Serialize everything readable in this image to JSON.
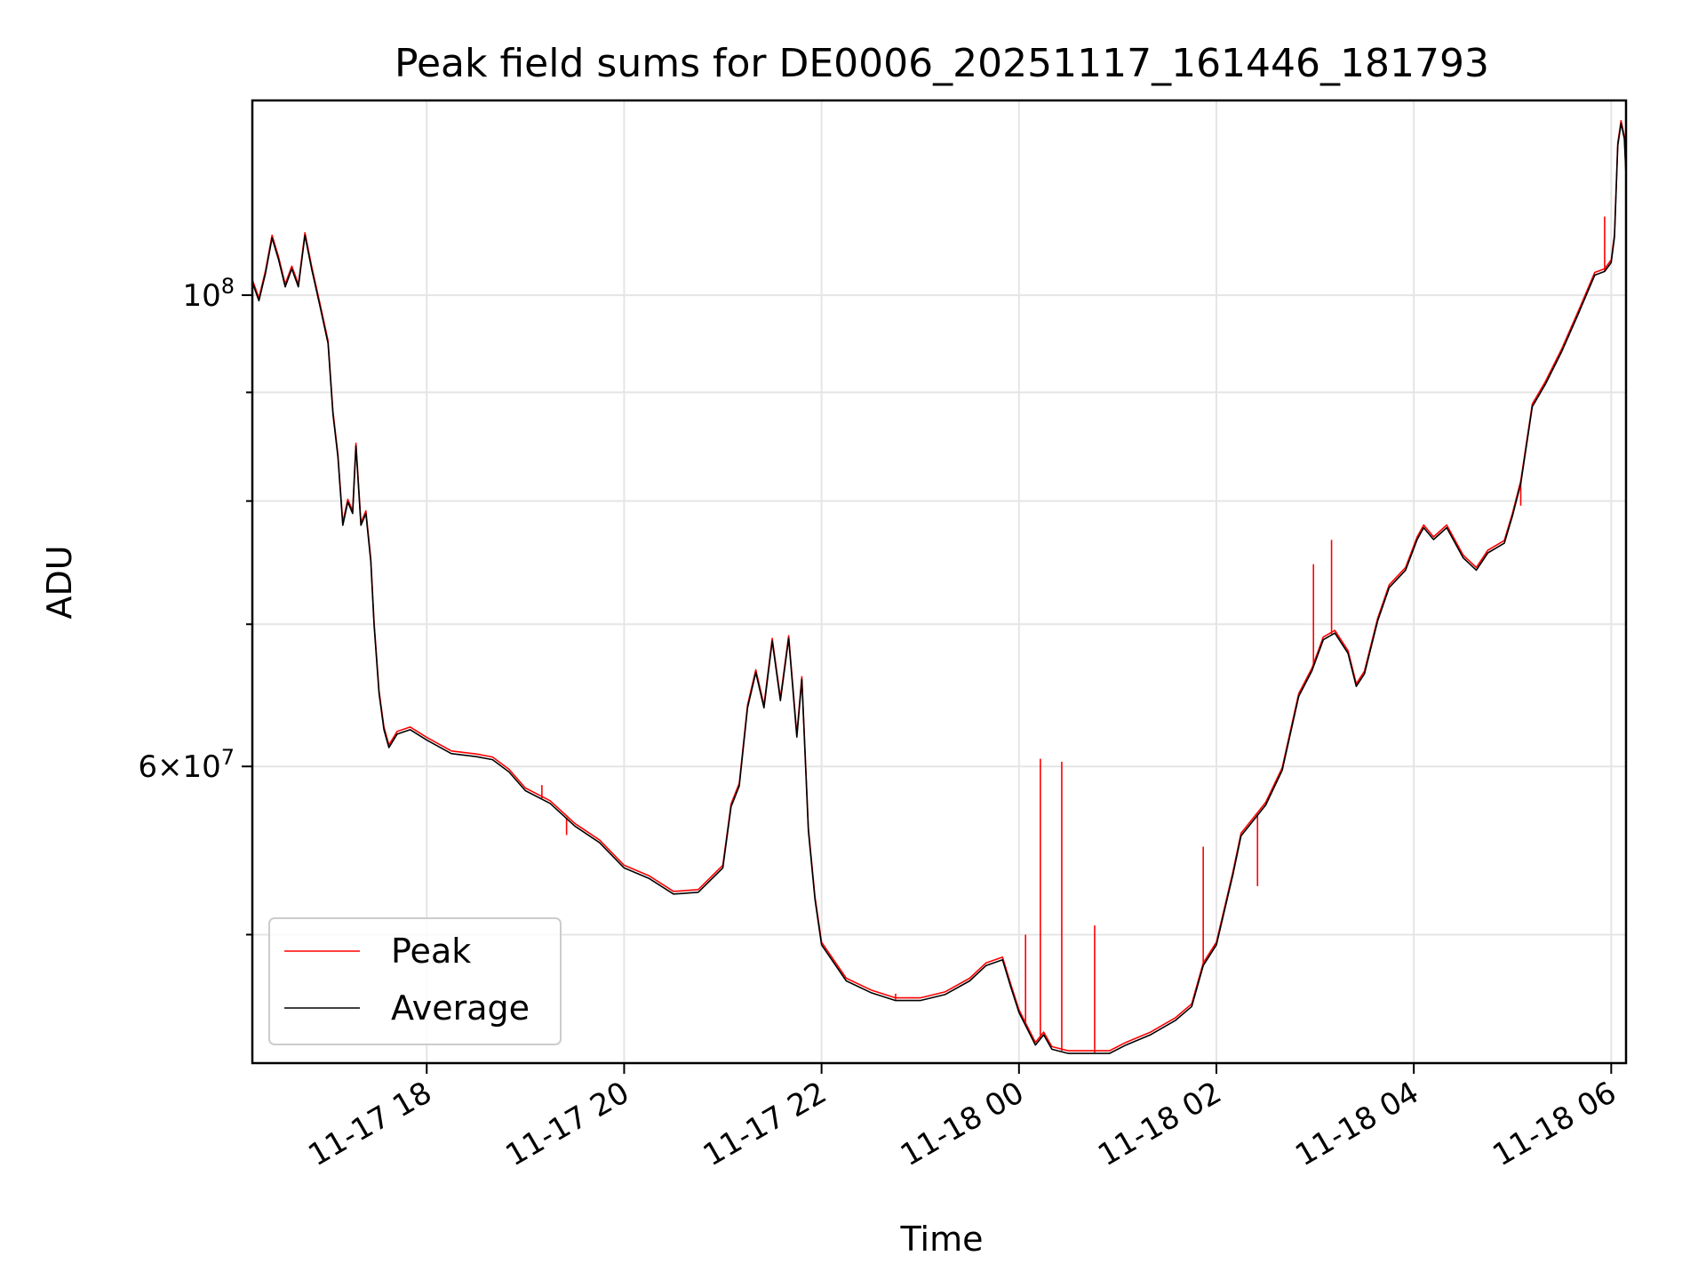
{
  "chart_data": {
    "type": "line",
    "title": "Peak field sums for DE0006_20251117_161446_181793",
    "xlabel": "Time",
    "ylabel": "ADU",
    "y_scale": "log",
    "ylim": [
      43500000,
      123500000
    ],
    "xlim": [
      "2025-11-17 16:14",
      "2025-11-18 06:09"
    ],
    "grid": true,
    "legend_position": "lower-left",
    "x_ticks": [
      {
        "t": "2025-11-17 18:00",
        "label": "11-17 18"
      },
      {
        "t": "2025-11-17 20:00",
        "label": "11-17 20"
      },
      {
        "t": "2025-11-17 22:00",
        "label": "11-17 22"
      },
      {
        "t": "2025-11-18 00:00",
        "label": "11-18 00"
      },
      {
        "t": "2025-11-18 02:00",
        "label": "11-18 02"
      },
      {
        "t": "2025-11-18 04:00",
        "label": "11-18 04"
      },
      {
        "t": "2025-11-18 06:00",
        "label": "11-18 06"
      }
    ],
    "y_major_ticks": [
      {
        "value": 100000000,
        "base": "10",
        "exp": "8"
      },
      {
        "value": 60000000,
        "mantissa": "6",
        "base": "10",
        "exp": "7"
      }
    ],
    "y_minor_ticks": [
      50000000,
      70000000,
      80000000,
      90000000
    ],
    "series": [
      {
        "name": "Peak",
        "color": "#ff0000",
        "points": [
          [
            "2025-11-17 16:14",
            101500000
          ],
          [
            "2025-11-17 16:18",
            99500000
          ],
          [
            "2025-11-17 16:22",
            102500000
          ],
          [
            "2025-11-17 16:26",
            106500000
          ],
          [
            "2025-11-17 16:30",
            104000000
          ],
          [
            "2025-11-17 16:34",
            101000000
          ],
          [
            "2025-11-17 16:38",
            103000000
          ],
          [
            "2025-11-17 16:42",
            101000000
          ],
          [
            "2025-11-17 16:46",
            106800000
          ],
          [
            "2025-11-17 16:50",
            103000000
          ],
          [
            "2025-11-17 16:55",
            99000000
          ],
          [
            "2025-11-17 17:00",
            95000000
          ],
          [
            "2025-11-17 17:03",
            88000000
          ],
          [
            "2025-11-17 17:06",
            84000000
          ],
          [
            "2025-11-17 17:09",
            78000000
          ],
          [
            "2025-11-17 17:12",
            80000000
          ],
          [
            "2025-11-17 17:15",
            79000000
          ],
          [
            "2025-11-17 17:17",
            85000000
          ],
          [
            "2025-11-17 17:20",
            78000000
          ],
          [
            "2025-11-17 17:23",
            79000000
          ],
          [
            "2025-11-17 17:26",
            75000000
          ],
          [
            "2025-11-17 17:28",
            70000000
          ],
          [
            "2025-11-17 17:31",
            65000000
          ],
          [
            "2025-11-17 17:34",
            62500000
          ],
          [
            "2025-11-17 17:37",
            61300000
          ],
          [
            "2025-11-17 17:42",
            62200000
          ],
          [
            "2025-11-17 17:50",
            62500000
          ],
          [
            "2025-11-17 18:00",
            61800000
          ],
          [
            "2025-11-17 18:15",
            60900000
          ],
          [
            "2025-11-17 18:30",
            60700000
          ],
          [
            "2025-11-17 18:40",
            60500000
          ],
          [
            "2025-11-17 18:50",
            59700000
          ],
          [
            "2025-11-17 19:00",
            58500000
          ],
          [
            "2025-11-17 19:15",
            57700000
          ],
          [
            "2025-11-17 19:30",
            56300000
          ],
          [
            "2025-11-17 19:45",
            55300000
          ],
          [
            "2025-11-17 20:00",
            53800000
          ],
          [
            "2025-11-17 20:15",
            53200000
          ],
          [
            "2025-11-17 20:30",
            52300000
          ],
          [
            "2025-11-17 20:45",
            52400000
          ],
          [
            "2025-11-17 21:00",
            53800000
          ],
          [
            "2025-11-17 21:05",
            57500000
          ],
          [
            "2025-11-17 21:10",
            58800000
          ],
          [
            "2025-11-17 21:15",
            64000000
          ],
          [
            "2025-11-17 21:20",
            66500000
          ],
          [
            "2025-11-17 21:25",
            64000000
          ],
          [
            "2025-11-17 21:30",
            68800000
          ],
          [
            "2025-11-17 21:35",
            64500000
          ],
          [
            "2025-11-17 21:40",
            69000000
          ],
          [
            "2025-11-17 21:45",
            62000000
          ],
          [
            "2025-11-17 21:48",
            66000000
          ],
          [
            "2025-11-17 21:52",
            56000000
          ],
          [
            "2025-11-17 21:56",
            52000000
          ],
          [
            "2025-11-17 22:00",
            49500000
          ],
          [
            "2025-11-17 22:15",
            47600000
          ],
          [
            "2025-11-17 22:30",
            47000000
          ],
          [
            "2025-11-17 22:45",
            46600000
          ],
          [
            "2025-11-17 23:00",
            46600000
          ],
          [
            "2025-11-17 23:15",
            46900000
          ],
          [
            "2025-11-17 23:30",
            47600000
          ],
          [
            "2025-11-17 23:40",
            48400000
          ],
          [
            "2025-11-17 23:50",
            48700000
          ],
          [
            "2025-11-17 23:55",
            47300000
          ],
          [
            "2025-11-18 00:00",
            46000000
          ],
          [
            "2025-11-18 00:10",
            44400000
          ],
          [
            "2025-11-18 00:15",
            44900000
          ],
          [
            "2025-11-18 00:20",
            44200000
          ],
          [
            "2025-11-18 00:30",
            44000000
          ],
          [
            "2025-11-18 00:45",
            44000000
          ],
          [
            "2025-11-18 00:55",
            44000000
          ],
          [
            "2025-11-18 01:05",
            44400000
          ],
          [
            "2025-11-18 01:20",
            44900000
          ],
          [
            "2025-11-18 01:35",
            45600000
          ],
          [
            "2025-11-18 01:45",
            46300000
          ],
          [
            "2025-11-18 01:52",
            48400000
          ],
          [
            "2025-11-18 02:00",
            49500000
          ],
          [
            "2025-11-18 02:10",
            53400000
          ],
          [
            "2025-11-18 02:15",
            55700000
          ],
          [
            "2025-11-18 02:30",
            57600000
          ],
          [
            "2025-11-18 02:40",
            59800000
          ],
          [
            "2025-11-18 02:50",
            64800000
          ],
          [
            "2025-11-18 02:58",
            66600000
          ],
          [
            "2025-11-18 03:05",
            68900000
          ],
          [
            "2025-11-18 03:12",
            69400000
          ],
          [
            "2025-11-18 03:20",
            67900000
          ],
          [
            "2025-11-18 03:25",
            65500000
          ],
          [
            "2025-11-18 03:30",
            66400000
          ],
          [
            "2025-11-18 03:38",
            70300000
          ],
          [
            "2025-11-18 03:45",
            72900000
          ],
          [
            "2025-11-18 03:55",
            74300000
          ],
          [
            "2025-11-18 04:02",
            76800000
          ],
          [
            "2025-11-18 04:06",
            77800000
          ],
          [
            "2025-11-18 04:12",
            76800000
          ],
          [
            "2025-11-18 04:20",
            77800000
          ],
          [
            "2025-11-18 04:30",
            75300000
          ],
          [
            "2025-11-18 04:38",
            74300000
          ],
          [
            "2025-11-18 04:45",
            75700000
          ],
          [
            "2025-11-18 04:55",
            76500000
          ],
          [
            "2025-11-18 05:00",
            78800000
          ],
          [
            "2025-11-18 05:05",
            81600000
          ],
          [
            "2025-11-18 05:12",
            88700000
          ],
          [
            "2025-11-18 05:20",
            90900000
          ],
          [
            "2025-11-18 05:30",
            94200000
          ],
          [
            "2025-11-18 05:40",
            98100000
          ],
          [
            "2025-11-18 05:50",
            102300000
          ],
          [
            "2025-11-18 05:56",
            102700000
          ],
          [
            "2025-11-18 06:00",
            103700000
          ],
          [
            "2025-11-18 06:02",
            106600000
          ],
          [
            "2025-11-18 06:04",
            117700000
          ],
          [
            "2025-11-18 06:06",
            120600000
          ],
          [
            "2025-11-18 06:08",
            118600000
          ],
          [
            "2025-11-18 06:09",
            114000000
          ]
        ],
        "spikes": [
          [
            "2025-11-17 19:10",
            58800000
          ],
          [
            "2025-11-17 19:25",
            55700000
          ],
          [
            "2025-11-17 22:45",
            46900000
          ],
          [
            "2025-11-18 00:04",
            50000000
          ],
          [
            "2025-11-18 00:13",
            60500000
          ],
          [
            "2025-11-18 00:26",
            60300000
          ],
          [
            "2025-11-18 00:46",
            50500000
          ],
          [
            "2025-11-18 01:52",
            55000000
          ],
          [
            "2025-11-18 02:25",
            52700000
          ],
          [
            "2025-11-18 02:59",
            74700000
          ],
          [
            "2025-11-18 03:10",
            76700000
          ],
          [
            "2025-11-18 05:05",
            79600000
          ],
          [
            "2025-11-18 05:56",
            108900000
          ]
        ]
      },
      {
        "name": "Average",
        "color": "#000000"
      }
    ]
  }
}
